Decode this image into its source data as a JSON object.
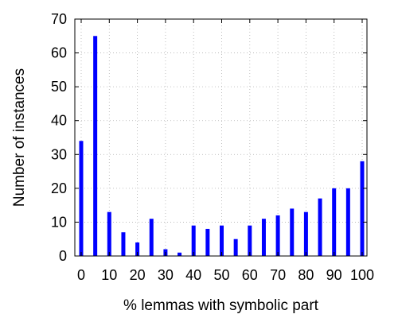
{
  "chart_data": {
    "type": "bar",
    "title": "",
    "xlabel": "% lemmas with symbolic part",
    "ylabel": "Number of instances",
    "x": [
      0,
      5,
      10,
      15,
      20,
      25,
      30,
      35,
      40,
      45,
      50,
      55,
      60,
      65,
      70,
      75,
      80,
      85,
      90,
      95,
      100
    ],
    "values": [
      34,
      65,
      13,
      7,
      4,
      11,
      2,
      1,
      9,
      8,
      9,
      5,
      9,
      11,
      12,
      14,
      13,
      17,
      20,
      20,
      28
    ],
    "xlim": [
      0,
      100
    ],
    "ylim": [
      0,
      70
    ],
    "x_ticks": [
      "0",
      "10",
      "20",
      "30",
      "40",
      "50",
      "60",
      "70",
      "80",
      "90",
      "100"
    ],
    "y_ticks": [
      "0",
      "10",
      "20",
      "30",
      "40",
      "50",
      "60",
      "70"
    ],
    "grid": true,
    "legend": "none",
    "bar_color": "#0000ff"
  }
}
